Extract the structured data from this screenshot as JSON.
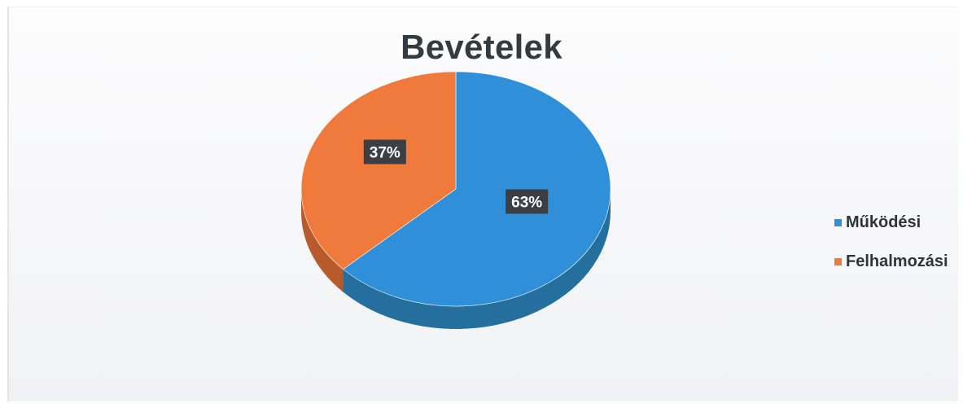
{
  "chart_data": {
    "type": "pie",
    "title": "Bevételek",
    "slices": [
      {
        "name": "Működési",
        "value": 63,
        "label": "63%",
        "color": "#2f8fd8",
        "side_color": "#256f9e"
      },
      {
        "name": "Felhalmozási",
        "value": 37,
        "label": "37%",
        "color": "#f07a3c",
        "side_color": "#b85a2c"
      }
    ],
    "legend_position": "right",
    "style": "3d"
  }
}
